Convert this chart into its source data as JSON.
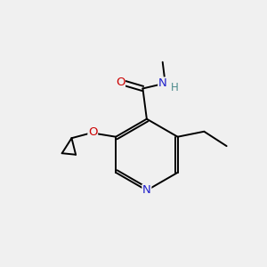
{
  "background_color": "#f0f0f0",
  "atom_colors": {
    "C": "#000000",
    "N": "#2020cc",
    "O": "#cc0000",
    "H": "#4a8a8a"
  },
  "figsize": [
    3.0,
    3.0
  ],
  "dpi": 100,
  "lw": 1.4,
  "fs": 9.5,
  "fs_small": 8.5
}
